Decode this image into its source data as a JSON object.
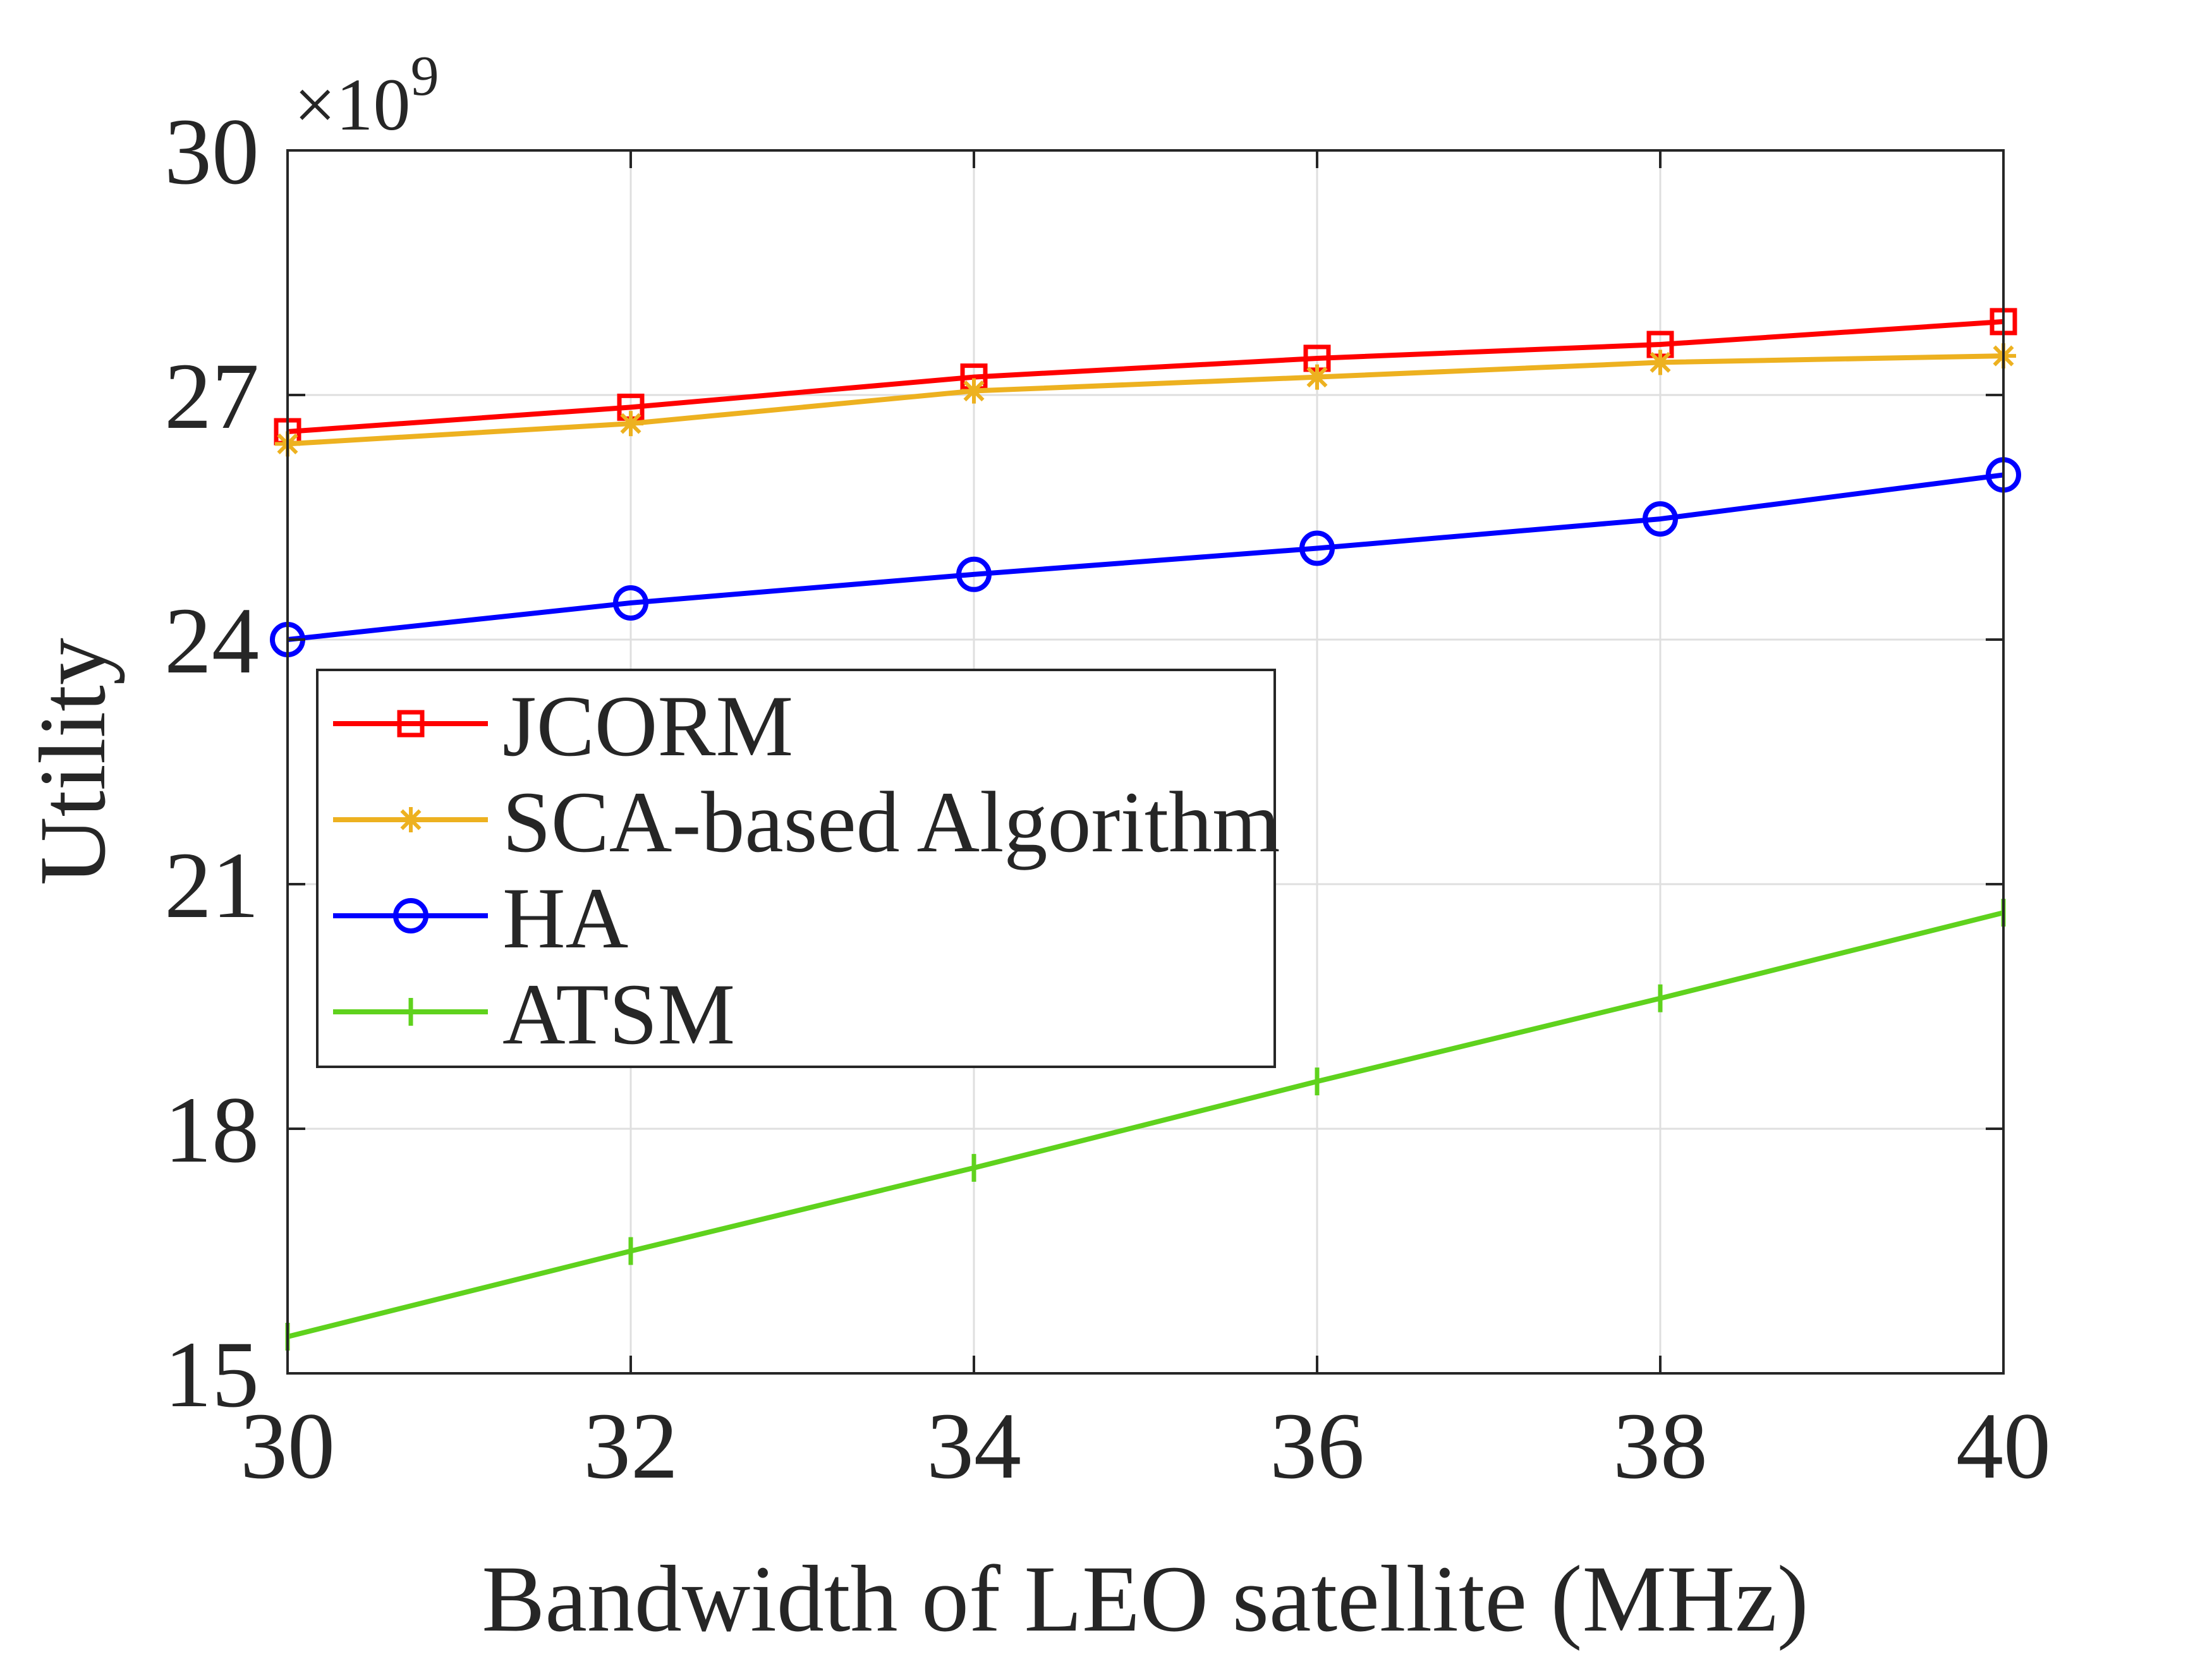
{
  "chart_data": {
    "type": "line",
    "xlabel": "Bandwidth of LEO satellite (MHz)",
    "ylabel": "Utility",
    "y_multiplier": {
      "base": "×10",
      "exponent": "9"
    },
    "x": [
      30,
      32,
      34,
      36,
      38,
      40
    ],
    "x_ticks": [
      30,
      32,
      34,
      36,
      38,
      40
    ],
    "y_ticks": [
      15,
      18,
      21,
      24,
      27,
      30
    ],
    "xlim": [
      30,
      40
    ],
    "ylim": [
      15,
      30
    ],
    "grid": true,
    "legend_position": "middle-left",
    "series": [
      {
        "name": "JCORM",
        "color": "#ff0000",
        "marker": "square",
        "values": [
          26.55,
          26.85,
          27.22,
          27.45,
          27.62,
          27.9
        ]
      },
      {
        "name": "SCA-based Algorithm",
        "color": "#edb120",
        "marker": "asterisk",
        "values": [
          26.4,
          26.65,
          27.05,
          27.22,
          27.4,
          27.48
        ]
      },
      {
        "name": "HA",
        "color": "#0000ff",
        "marker": "circle",
        "values": [
          24.0,
          24.45,
          24.8,
          25.12,
          25.48,
          26.02
        ]
      },
      {
        "name": "ATSM",
        "color": "#5fd21d",
        "marker": "tick",
        "values": [
          15.45,
          16.5,
          17.52,
          18.58,
          19.6,
          20.65
        ]
      }
    ]
  }
}
